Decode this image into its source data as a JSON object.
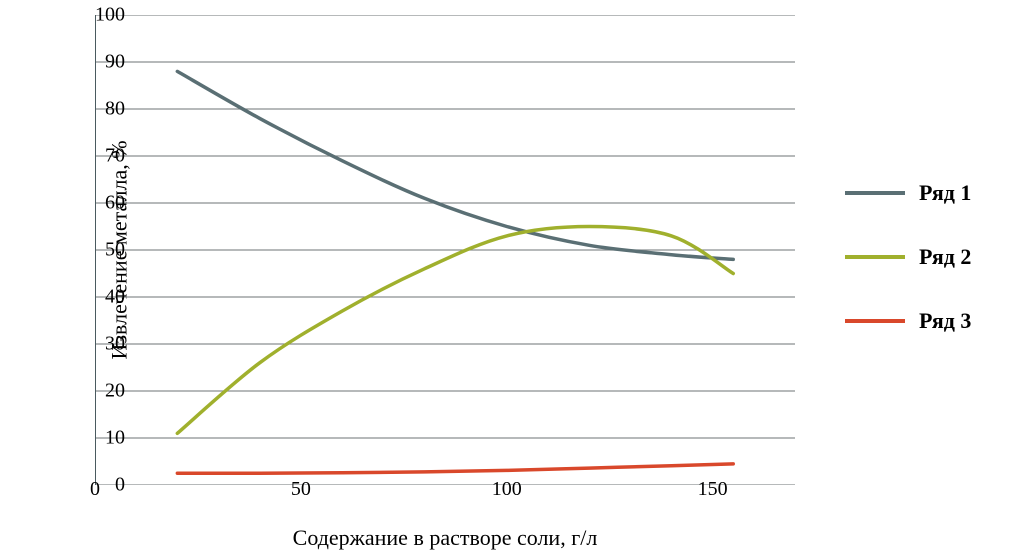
{
  "chart": {
    "type": "line",
    "background_color": "#ffffff",
    "grid_color": "#8a8f90",
    "axis_color": "#4a5a5f",
    "xlabel": "Содержание в растворе соли, г/л",
    "ylabel": "Извлечение металла, %",
    "label_fontsize": 22,
    "tick_fontsize": 20,
    "xlim": [
      0,
      170
    ],
    "ylim": [
      0,
      100
    ],
    "xticks": [
      0,
      50,
      100,
      150
    ],
    "yticks": [
      0,
      10,
      20,
      30,
      40,
      50,
      60,
      70,
      80,
      90,
      100
    ],
    "grid_line_width": 1.2,
    "series": [
      {
        "name": "Ряд 1",
        "color": "#5a6f74",
        "line_width": 3.5,
        "x": [
          20,
          40,
          60,
          80,
          100,
          120,
          140,
          155
        ],
        "y": [
          88,
          78,
          69,
          61,
          55,
          51,
          49,
          48
        ]
      },
      {
        "name": "Ряд 2",
        "color": "#a0b02d",
        "line_width": 3.5,
        "x": [
          20,
          40,
          60,
          80,
          100,
          120,
          140,
          155
        ],
        "y": [
          11,
          26,
          37,
          46,
          53,
          55,
          53,
          45
        ]
      },
      {
        "name": "Ряд 3",
        "color": "#d9482b",
        "line_width": 3.5,
        "x": [
          20,
          40,
          60,
          80,
          100,
          120,
          140,
          155
        ],
        "y": [
          2.5,
          2.5,
          2.6,
          2.8,
          3.1,
          3.6,
          4.1,
          4.5
        ]
      }
    ],
    "legend": {
      "position": "right",
      "items": [
        {
          "label": "Ряд 1",
          "color": "#5a6f74"
        },
        {
          "label": "Ряд 2",
          "color": "#a0b02d"
        },
        {
          "label": "Ряд 3",
          "color": "#d9482b"
        }
      ],
      "font_weight": "bold",
      "font_size": 22
    }
  }
}
